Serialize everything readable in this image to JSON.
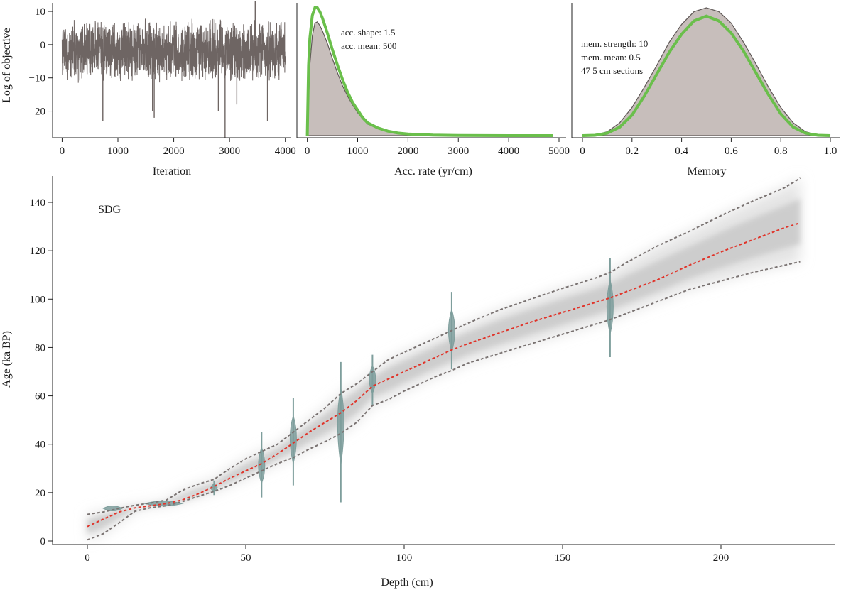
{
  "colors": {
    "trace": "#6e6563",
    "density_fill": "#c7bebb",
    "density_line": "#5f5856",
    "prior": "#6abf4b",
    "median": "#e0342a",
    "bounds": "#7a7372",
    "date_violin": "#7e9e9c"
  },
  "chart_data": [
    {
      "id": "iterations",
      "type": "line",
      "xlabel": "Iteration",
      "ylabel": "Log of objective",
      "xlim": [
        -120,
        4080
      ],
      "ylim": [
        -28,
        13
      ],
      "xticks": [
        0,
        1000,
        2000,
        3000,
        4000
      ],
      "yticks": [
        10,
        0,
        -10,
        -20
      ],
      "ytick_labels": [
        "10",
        "0",
        "−10",
        "−20"
      ],
      "n_iterations": 4000,
      "typical_range": [
        -12,
        8
      ],
      "outlier_spikes": [
        {
          "x": 730,
          "y": -23
        },
        {
          "x": 1620,
          "y": -20
        },
        {
          "x": 1650,
          "y": -22
        },
        {
          "x": 2920,
          "y": -28
        },
        {
          "x": 2800,
          "y": -20
        },
        {
          "x": 3130,
          "y": -18
        },
        {
          "x": 3680,
          "y": -23
        },
        {
          "x": 3460,
          "y": 13
        }
      ]
    },
    {
      "id": "acc-rate",
      "type": "area",
      "xlabel": "Acc. rate (yr/cm)",
      "xlim": [
        -150,
        5000
      ],
      "ylim": [
        0,
        1
      ],
      "xticks": [
        0,
        1000,
        2000,
        3000,
        4000,
        5000
      ],
      "annotations": [
        "acc. shape: 1.5",
        "acc. mean: 500"
      ],
      "posterior": {
        "x": [
          0,
          50,
          100,
          150,
          200,
          250,
          300,
          400,
          500,
          600,
          700,
          800,
          900,
          1000,
          1100,
          1200,
          1400,
          1600,
          1800,
          2000,
          2500,
          3000,
          3500,
          4000,
          4500,
          4880
        ],
        "y": [
          0,
          0.55,
          0.78,
          0.88,
          0.89,
          0.86,
          0.82,
          0.72,
          0.6,
          0.49,
          0.39,
          0.31,
          0.24,
          0.18,
          0.13,
          0.09,
          0.06,
          0.035,
          0.02,
          0.012,
          0.005,
          0.002,
          0.001,
          0,
          0,
          0
        ]
      },
      "prior": {
        "x": [
          0,
          25,
          50,
          100,
          150,
          200,
          250,
          300,
          400,
          500,
          600,
          700,
          800,
          900,
          1000,
          1100,
          1200,
          1400,
          1600,
          1800,
          2000,
          2500,
          3000,
          3500,
          4000,
          4500,
          4880
        ],
        "y": [
          0,
          0.55,
          0.76,
          0.94,
          1.0,
          1.0,
          0.97,
          0.92,
          0.8,
          0.67,
          0.55,
          0.44,
          0.34,
          0.26,
          0.2,
          0.14,
          0.1,
          0.06,
          0.035,
          0.02,
          0.012,
          0.004,
          0.0015,
          0.0005,
          0,
          0,
          0
        ]
      }
    },
    {
      "id": "memory",
      "type": "area",
      "xlabel": "Memory",
      "xlim": [
        -0.01,
        1.03
      ],
      "ylim": [
        0,
        1
      ],
      "xticks": [
        0,
        0.2,
        0.4,
        0.6,
        0.8,
        1.0
      ],
      "xtick_labels": [
        "0",
        "0.2",
        "0.4",
        "0.6",
        "0.8",
        "1.0"
      ],
      "annotations": [
        "mem. strength: 10",
        "mem. mean: 0.5",
        "47 5 cm sections"
      ],
      "posterior": {
        "x": [
          0,
          0.05,
          0.1,
          0.15,
          0.2,
          0.25,
          0.3,
          0.35,
          0.4,
          0.45,
          0.5,
          0.55,
          0.6,
          0.65,
          0.7,
          0.75,
          0.8,
          0.85,
          0.9,
          0.95,
          1.0
        ],
        "y": [
          0,
          0.005,
          0.03,
          0.1,
          0.22,
          0.38,
          0.55,
          0.73,
          0.87,
          0.97,
          1.0,
          0.97,
          0.88,
          0.73,
          0.56,
          0.38,
          0.22,
          0.1,
          0.03,
          0.005,
          0
        ]
      },
      "prior": {
        "x": [
          0,
          0.05,
          0.1,
          0.15,
          0.2,
          0.25,
          0.3,
          0.35,
          0.4,
          0.45,
          0.5,
          0.55,
          0.6,
          0.65,
          0.7,
          0.75,
          0.8,
          0.85,
          0.9,
          0.95,
          1.0
        ],
        "y": [
          0,
          0.003,
          0.02,
          0.07,
          0.17,
          0.33,
          0.51,
          0.69,
          0.84,
          0.95,
          0.99,
          0.95,
          0.85,
          0.7,
          0.52,
          0.34,
          0.18,
          0.07,
          0.02,
          0.003,
          0
        ]
      }
    },
    {
      "id": "age-depth",
      "type": "line",
      "title": "SDG",
      "xlabel": "Depth (cm)",
      "ylabel": "Age (ka BP)",
      "xlim": [
        -10,
        237
      ],
      "ylim": [
        -2,
        151
      ],
      "xticks": [
        0,
        50,
        100,
        150,
        200
      ],
      "yticks": [
        0,
        20,
        40,
        60,
        80,
        100,
        120,
        140
      ],
      "median": {
        "x": [
          0,
          5,
          10,
          15,
          20,
          25,
          30,
          35,
          40,
          45,
          50,
          55,
          60,
          65,
          70,
          75,
          80,
          85,
          90,
          95,
          100,
          110,
          115,
          120,
          130,
          140,
          150,
          160,
          165,
          170,
          180,
          190,
          200,
          210,
          220,
          225
        ],
        "y": [
          6,
          9,
          12,
          13.7,
          14.6,
          15.5,
          17,
          19.5,
          22.5,
          26,
          29,
          32,
          36,
          40.5,
          45,
          49,
          53,
          58,
          64,
          67,
          70,
          76,
          79,
          81.5,
          86,
          90.5,
          94.5,
          98.5,
          100.5,
          103,
          108,
          114,
          119.5,
          124.5,
          129.5,
          131.5
        ]
      },
      "upper": {
        "x": [
          0,
          5,
          10,
          15,
          20,
          25,
          30,
          35,
          40,
          45,
          50,
          55,
          60,
          65,
          70,
          75,
          80,
          85,
          90,
          95,
          100,
          110,
          115,
          120,
          130,
          140,
          150,
          160,
          165,
          170,
          180,
          190,
          200,
          210,
          220,
          225
        ],
        "y": [
          11,
          12,
          13.5,
          14.8,
          15.7,
          17,
          21,
          23.5,
          25.5,
          30,
          34,
          37,
          40,
          45,
          50,
          55,
          61,
          65,
          70,
          75,
          78,
          84,
          87,
          90,
          95.5,
          100,
          104.5,
          108.5,
          111,
          115,
          122,
          128,
          134.5,
          140.5,
          146,
          150
        ]
      },
      "lower": {
        "x": [
          0,
          5,
          10,
          15,
          20,
          25,
          30,
          35,
          40,
          45,
          50,
          55,
          60,
          65,
          70,
          75,
          80,
          85,
          90,
          95,
          100,
          110,
          115,
          120,
          130,
          140,
          150,
          160,
          165,
          170,
          180,
          190,
          200,
          210,
          220,
          225
        ],
        "y": [
          0.5,
          3,
          7.5,
          12.3,
          13.8,
          14.6,
          16.3,
          18.5,
          20.5,
          23,
          26,
          29,
          32,
          34.5,
          38,
          41,
          44.5,
          49,
          56,
          58.5,
          62,
          68,
          70.5,
          73.5,
          77.5,
          81.5,
          85.5,
          89.5,
          91.5,
          94,
          99,
          104,
          107.5,
          111,
          114,
          115.5
        ]
      },
      "dates": [
        {
          "depth": 8,
          "age": 13.5,
          "half_width_cm": 3,
          "orientation": "horizontal"
        },
        {
          "depth": 24,
          "age": 15.5,
          "half_width_cm": 6,
          "orientation": "horizontal"
        },
        {
          "depth": 40,
          "age": 22,
          "min": 19,
          "max": 25
        },
        {
          "depth": 55,
          "age": 31,
          "min": 18,
          "max": 45
        },
        {
          "depth": 65,
          "age": 43,
          "min": 23,
          "max": 59
        },
        {
          "depth": 80,
          "age": 50,
          "min": 16,
          "max": 74
        },
        {
          "depth": 90,
          "age": 67,
          "min": 56,
          "max": 77
        },
        {
          "depth": 115,
          "age": 87,
          "min": 71,
          "max": 103
        },
        {
          "depth": 165,
          "age": 97,
          "min": 76,
          "max": 117
        }
      ]
    }
  ]
}
